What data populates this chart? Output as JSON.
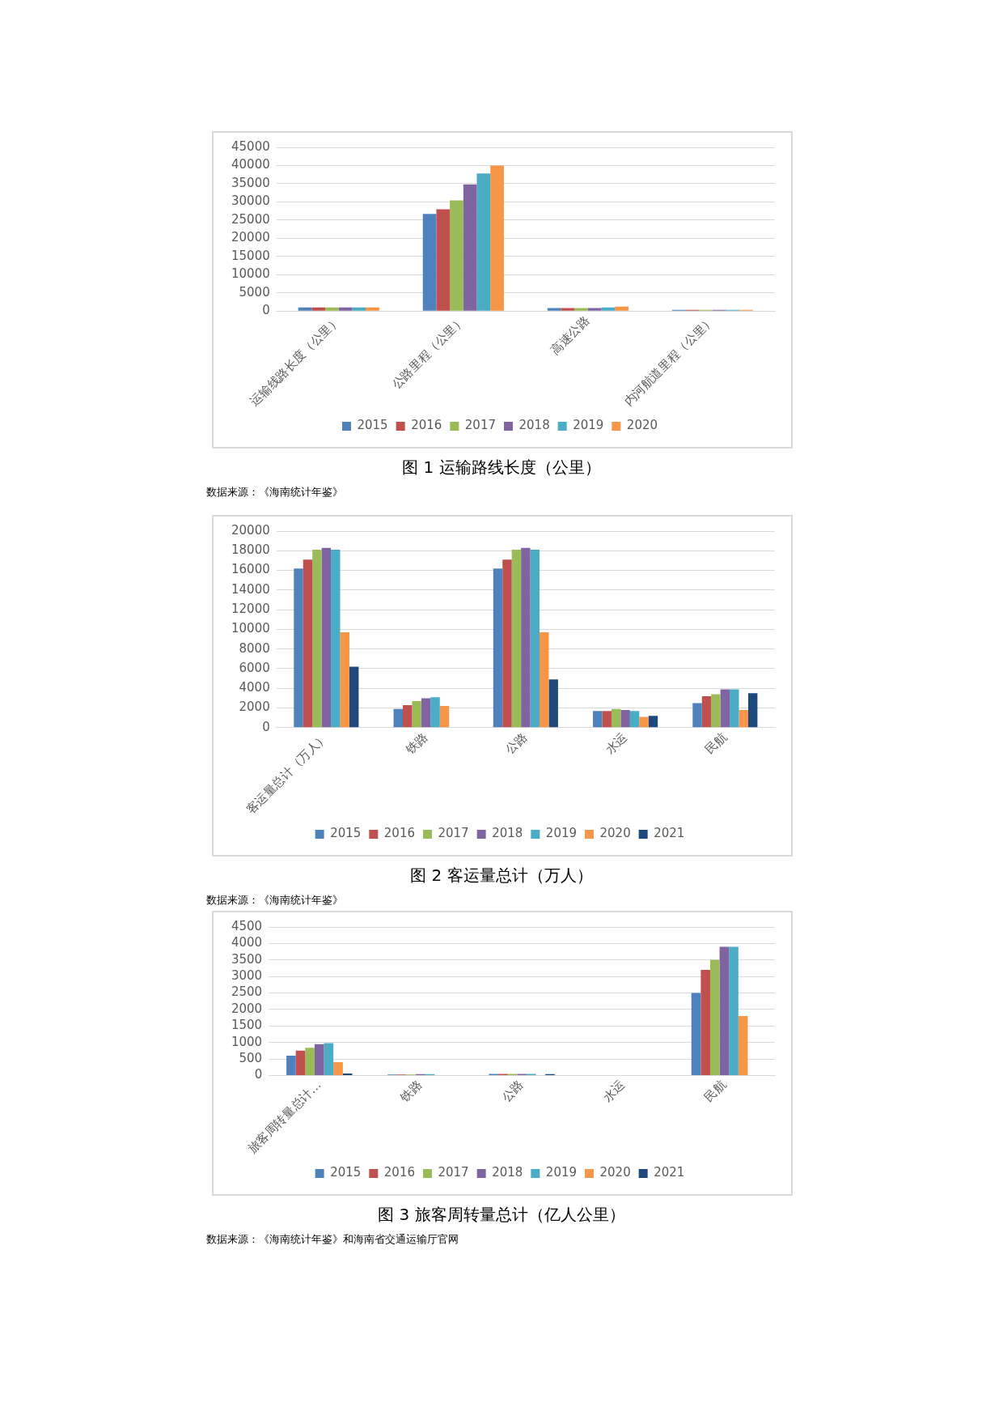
{
  "chart_data": [
    {
      "type": "bar",
      "title": "图 1 运输路线长度（公里）",
      "annotations": [
        "数据来源：《海南统计年鉴》"
      ],
      "categories": [
        "运输线路长度（公里）",
        "公路里程（公里）",
        "高速公路",
        "内河航道里程（公里）"
      ],
      "series": [
        {
          "name": "2015",
          "color": "#4f81bd",
          "values": [
            1000,
            26700,
            800,
            300
          ]
        },
        {
          "name": "2016",
          "color": "#c0504d",
          "values": [
            1000,
            28000,
            800,
            300
          ]
        },
        {
          "name": "2017",
          "color": "#9bbb59",
          "values": [
            1000,
            30400,
            800,
            300
          ]
        },
        {
          "name": "2018",
          "color": "#8064a2",
          "values": [
            1000,
            34800,
            800,
            300
          ]
        },
        {
          "name": "2019",
          "color": "#4bacc6",
          "values": [
            1000,
            37800,
            1000,
            300
          ]
        },
        {
          "name": "2020",
          "color": "#f79646",
          "values": [
            1000,
            40000,
            1200,
            300
          ]
        }
      ],
      "ylim": [
        0,
        45000
      ],
      "yticks": [
        0,
        5000,
        10000,
        15000,
        20000,
        25000,
        30000,
        35000,
        40000,
        45000
      ],
      "grid": "y",
      "legend": "bottom"
    },
    {
      "type": "bar",
      "title": "图 2 客运量总计（万人）",
      "annotations": [
        "数据来源：《海南统计年鉴》"
      ],
      "categories": [
        "客运量总计（万人）",
        "铁路",
        "公路",
        "水运",
        "民航"
      ],
      "series": [
        {
          "name": "2015",
          "color": "#4f81bd",
          "values": [
            16200,
            1900,
            16200,
            1700,
            2500
          ]
        },
        {
          "name": "2016",
          "color": "#c0504d",
          "values": [
            17100,
            2300,
            17100,
            1700,
            3200
          ]
        },
        {
          "name": "2017",
          "color": "#9bbb59",
          "values": [
            18100,
            2700,
            18100,
            1900,
            3400
          ]
        },
        {
          "name": "2018",
          "color": "#8064a2",
          "values": [
            18300,
            3000,
            18300,
            1800,
            3900
          ]
        },
        {
          "name": "2019",
          "color": "#4bacc6",
          "values": [
            18100,
            3100,
            18100,
            1700,
            3900
          ]
        },
        {
          "name": "2020",
          "color": "#f79646",
          "values": [
            9700,
            2200,
            9700,
            1100,
            1800
          ]
        },
        {
          "name": "2021",
          "color": "#1f497d",
          "values": [
            6200,
            null,
            4900,
            1200,
            3500
          ]
        }
      ],
      "ylim": [
        0,
        20000
      ],
      "yticks": [
        0,
        2000,
        4000,
        6000,
        8000,
        10000,
        12000,
        14000,
        16000,
        18000,
        20000
      ],
      "grid": "y",
      "legend": "bottom"
    },
    {
      "type": "bar",
      "title": "图 3 旅客周转量总计（亿人公里）",
      "annotations": [
        "数据来源：《海南统计年鉴》和海南省交通运输厅官网"
      ],
      "categories": [
        "旅客周转量总计…",
        "铁路",
        "公路",
        "水运",
        "民航"
      ],
      "series": [
        {
          "name": "2015",
          "color": "#4f81bd",
          "values": [
            600,
            30,
            50,
            null,
            2500
          ]
        },
        {
          "name": "2016",
          "color": "#c0504d",
          "values": [
            750,
            30,
            50,
            null,
            3200
          ]
        },
        {
          "name": "2017",
          "color": "#9bbb59",
          "values": [
            840,
            30,
            50,
            null,
            3500
          ]
        },
        {
          "name": "2018",
          "color": "#8064a2",
          "values": [
            950,
            40,
            50,
            null,
            3900
          ]
        },
        {
          "name": "2019",
          "color": "#4bacc6",
          "values": [
            980,
            40,
            50,
            null,
            3900
          ]
        },
        {
          "name": "2020",
          "color": "#f79646",
          "values": [
            400,
            null,
            null,
            null,
            1800
          ]
        },
        {
          "name": "2021",
          "color": "#1f497d",
          "values": [
            60,
            null,
            40,
            null,
            null
          ]
        }
      ],
      "ylim": [
        0,
        4500
      ],
      "yticks": [
        0,
        500,
        1000,
        1500,
        2000,
        2500,
        3000,
        3500,
        4000,
        4500
      ],
      "grid": "y",
      "legend": "bottom"
    }
  ]
}
